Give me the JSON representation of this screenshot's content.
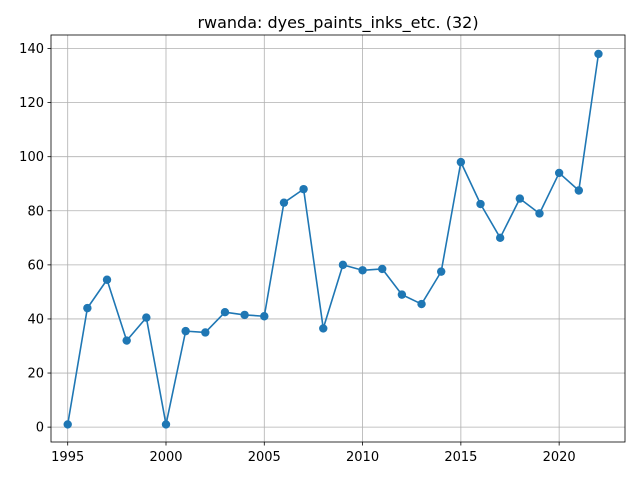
{
  "chart_data": {
    "type": "line",
    "title": "rwanda: dyes_paints_inks_etc. (32)",
    "xlabel": "",
    "ylabel": "",
    "grid": true,
    "marker": "circle",
    "x": [
      1995,
      1996,
      1997,
      1998,
      1999,
      2000,
      2001,
      2002,
      2003,
      2004,
      2005,
      2006,
      2007,
      2008,
      2009,
      2010,
      2011,
      2012,
      2013,
      2014,
      2015,
      2016,
      2017,
      2018,
      2019,
      2020,
      2021,
      2022
    ],
    "series": [
      {
        "name": "",
        "color": "#1f77b4",
        "values": [
          1,
          44,
          54.5,
          32,
          40.5,
          1,
          35.5,
          35,
          42.5,
          41.5,
          41,
          83,
          88,
          36.5,
          60,
          58,
          58.5,
          49,
          45.5,
          57.5,
          98,
          82.5,
          70,
          84.5,
          79,
          94,
          87.5,
          138
        ]
      }
    ],
    "xlim": [
      1994.15,
      2023.35
    ],
    "ylim": [
      -5.5,
      145
    ],
    "xticks": [
      "1995",
      "2000",
      "2005",
      "2010",
      "2015",
      "2020"
    ],
    "yticks": [
      "0",
      "20",
      "40",
      "60",
      "80",
      "100",
      "120",
      "140"
    ]
  }
}
